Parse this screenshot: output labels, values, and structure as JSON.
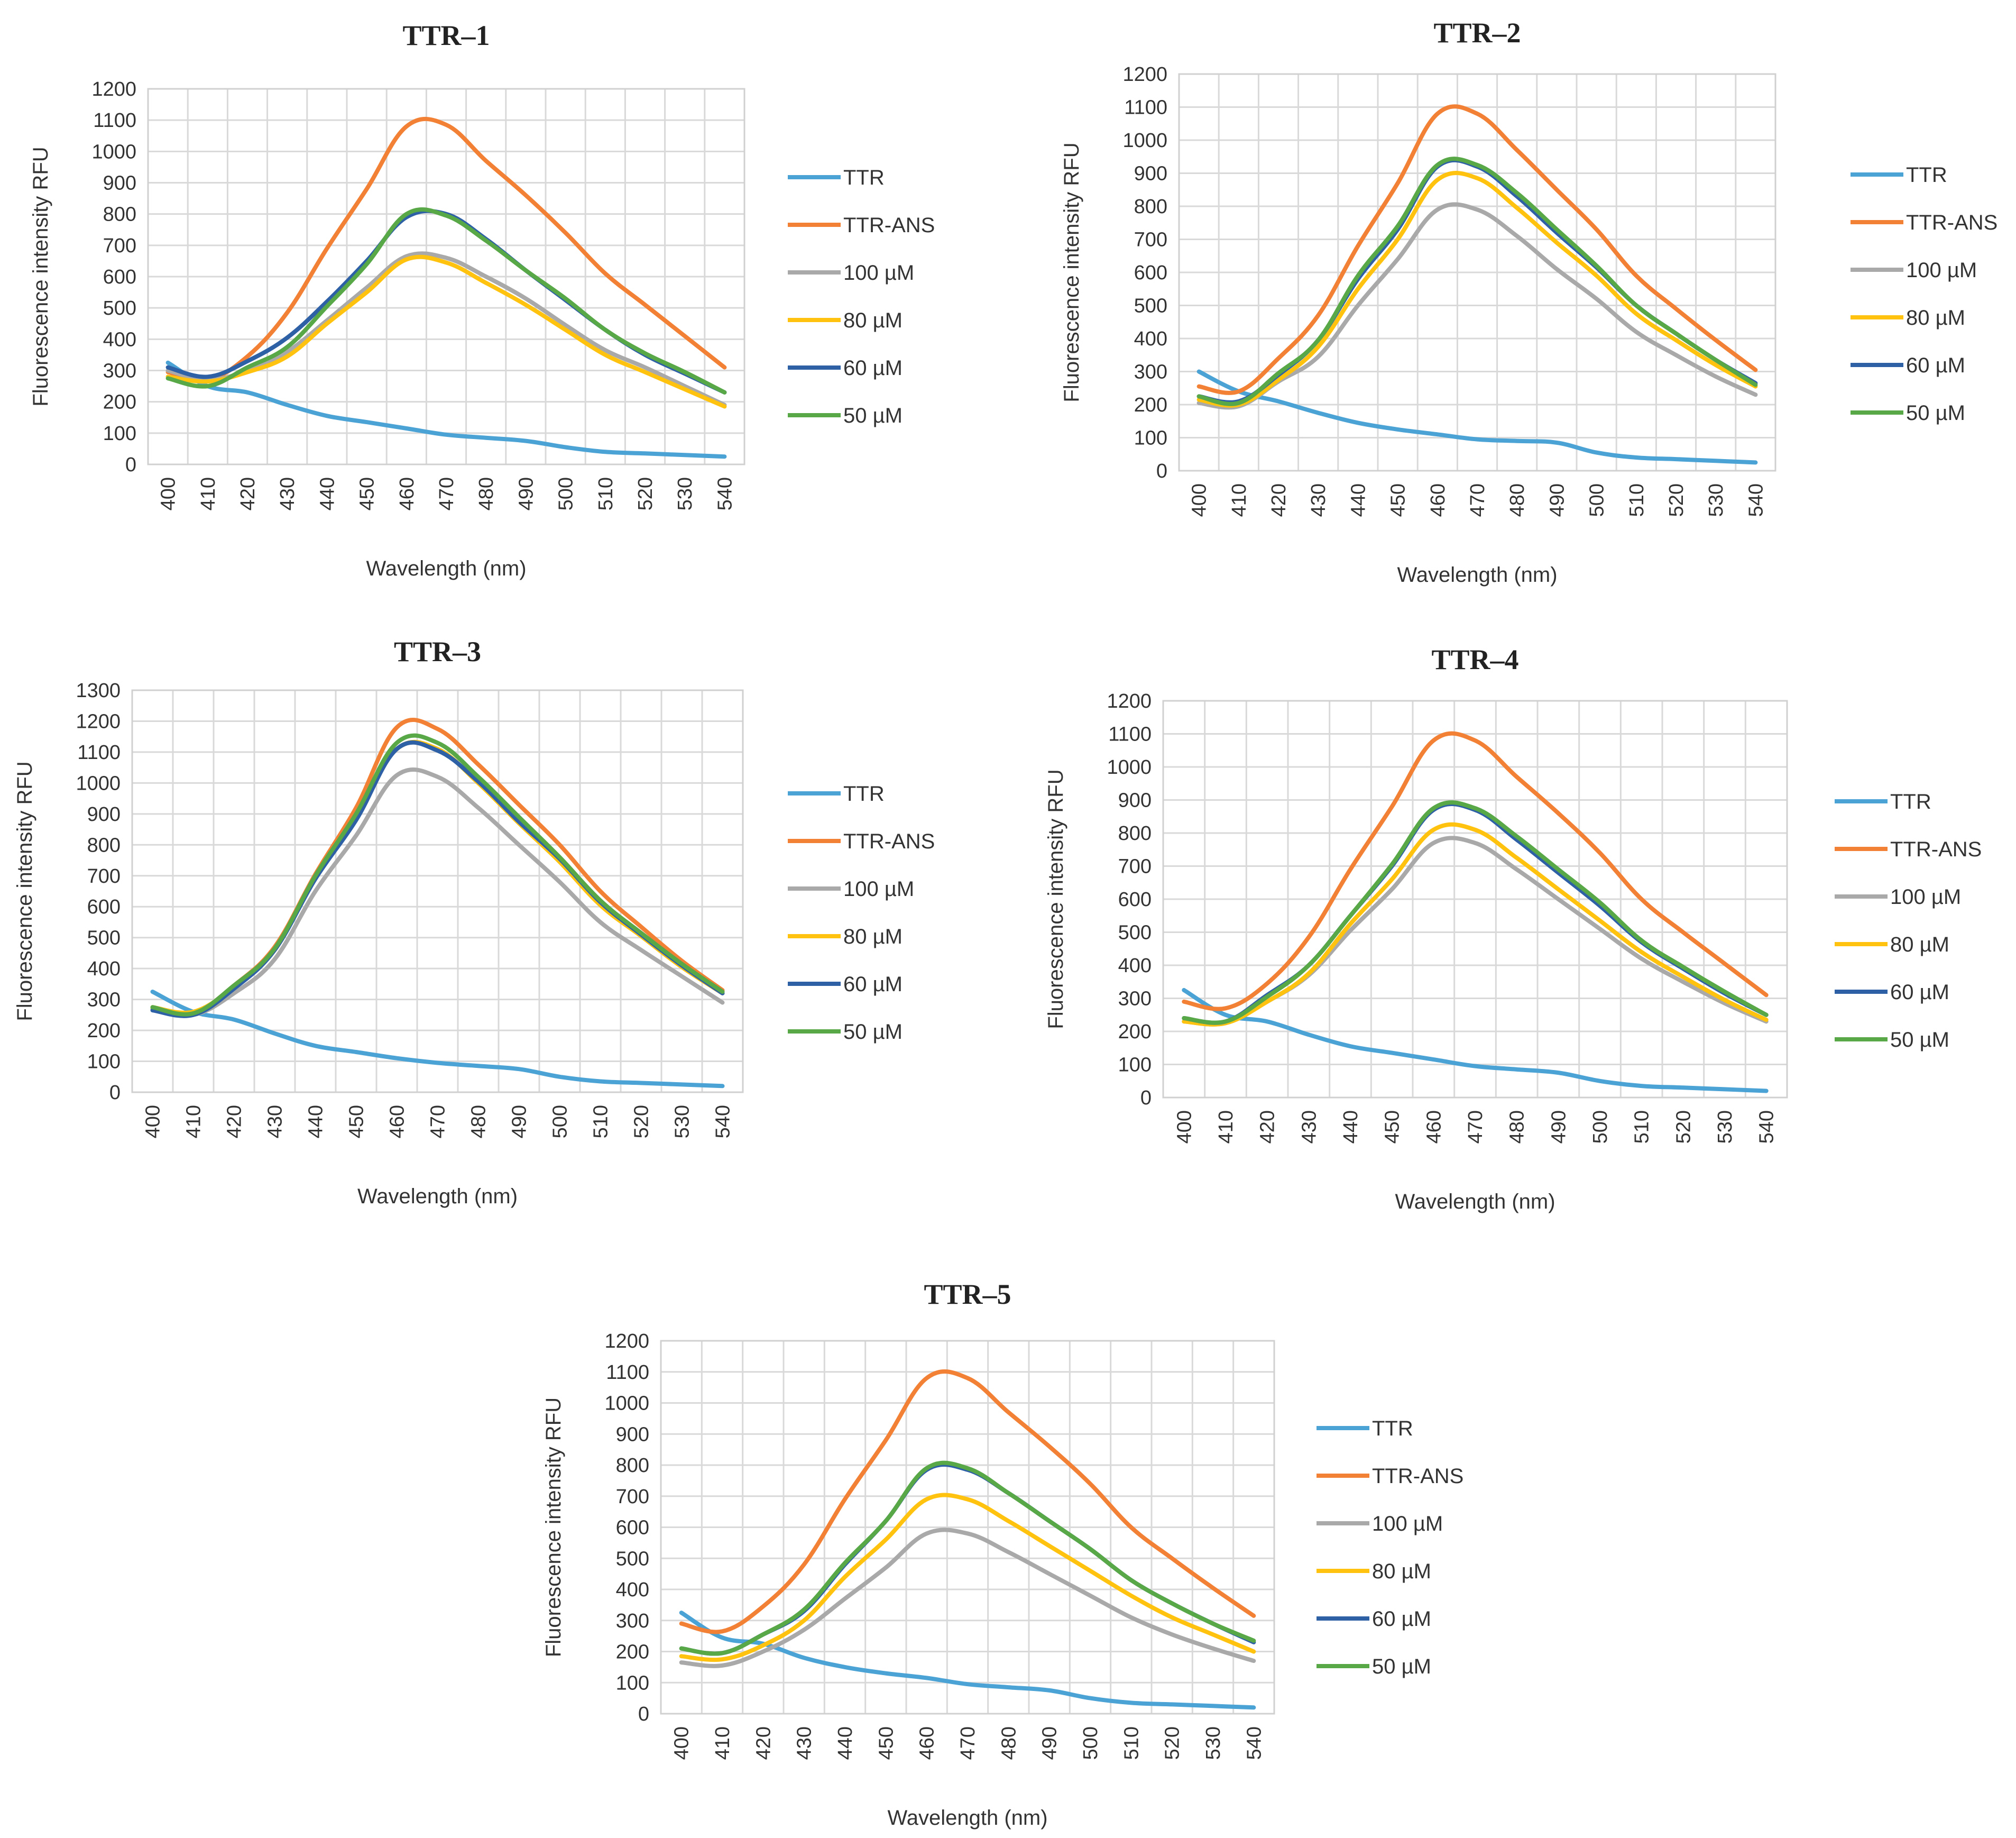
{
  "figure": {
    "colors": {
      "TTR": "#4BA2D4",
      "TTR-ANS": "#F28135",
      "100 µM": "#A9A9A9",
      "80 µM": "#FFC20E",
      "60 µM": "#2E60A6",
      "50 µM": "#58A847"
    }
  },
  "chart_data": [
    {
      "type": "line",
      "title": "TTR–1",
      "xlabel": "Wavelength (nm)",
      "ylabel": "Fluorescence intensity RFU",
      "categories": [
        "400",
        "410",
        "420",
        "430",
        "440",
        "450",
        "460",
        "470",
        "480",
        "490",
        "500",
        "510",
        "520",
        "530",
        "540"
      ],
      "yticks": [
        "0",
        "100",
        "200",
        "300",
        "400",
        "500",
        "600",
        "700",
        "800",
        "900",
        "1000",
        "1100",
        "1200"
      ],
      "ylim": [
        0,
        1200
      ],
      "grid": true,
      "legend": "right",
      "series": [
        {
          "name": "TTR",
          "values": [
            325,
            250,
            230,
            190,
            155,
            135,
            115,
            95,
            85,
            75,
            55,
            40,
            35,
            30,
            25
          ]
        },
        {
          "name": "TTR-ANS",
          "values": [
            295,
            270,
            345,
            485,
            690,
            880,
            1080,
            1085,
            970,
            860,
            740,
            610,
            510,
            410,
            310
          ]
        },
        {
          "name": "100 µM",
          "values": [
            300,
            270,
            300,
            360,
            460,
            565,
            665,
            660,
            600,
            530,
            445,
            365,
            310,
            250,
            190
          ]
        },
        {
          "name": "80 µM",
          "values": [
            280,
            265,
            295,
            345,
            450,
            550,
            655,
            645,
            580,
            510,
            430,
            350,
            295,
            240,
            185
          ]
        },
        {
          "name": "60 µM",
          "values": [
            310,
            280,
            330,
            405,
            520,
            650,
            790,
            800,
            720,
            620,
            525,
            430,
            350,
            290,
            230
          ]
        },
        {
          "name": "50 µM",
          "values": [
            275,
            250,
            310,
            375,
            505,
            640,
            800,
            795,
            715,
            620,
            530,
            430,
            355,
            295,
            230
          ]
        }
      ]
    },
    {
      "type": "line",
      "title": "TTR–2",
      "xlabel": "Wavelength (nm)",
      "ylabel": "Fluorescence intensity RFU",
      "categories": [
        "400",
        "410",
        "420",
        "430",
        "440",
        "450",
        "460",
        "470",
        "480",
        "490",
        "500",
        "510",
        "520",
        "530",
        "540"
      ],
      "yticks": [
        "0",
        "100",
        "200",
        "300",
        "400",
        "500",
        "600",
        "700",
        "800",
        "900",
        "1000",
        "1100",
        "1200"
      ],
      "ylim": [
        0,
        1200
      ],
      "grid": true,
      "legend": "right",
      "series": [
        {
          "name": "TTR",
          "values": [
            300,
            240,
            210,
            175,
            145,
            125,
            110,
            95,
            90,
            85,
            55,
            40,
            35,
            30,
            25
          ]
        },
        {
          "name": "TTR-ANS",
          "values": [
            255,
            240,
            340,
            470,
            680,
            870,
            1080,
            1080,
            970,
            850,
            730,
            590,
            490,
            395,
            305
          ]
        },
        {
          "name": "100 µM",
          "values": [
            205,
            195,
            270,
            345,
            500,
            640,
            790,
            790,
            710,
            610,
            520,
            420,
            350,
            285,
            230
          ]
        },
        {
          "name": "80 µM",
          "values": [
            215,
            200,
            275,
            375,
            550,
            700,
            880,
            885,
            795,
            690,
            590,
            475,
            395,
            320,
            255
          ]
        },
        {
          "name": "60 µM",
          "values": [
            225,
            210,
            290,
            395,
            580,
            730,
            920,
            920,
            830,
            720,
            615,
            500,
            415,
            335,
            265
          ]
        },
        {
          "name": "50 µM",
          "values": [
            225,
            205,
            295,
            395,
            590,
            740,
            925,
            925,
            840,
            730,
            620,
            500,
            415,
            335,
            260
          ]
        }
      ]
    },
    {
      "type": "line",
      "title": "TTR–3",
      "xlabel": "Wavelength (nm)",
      "ylabel": "Fluorescence intensity RFU",
      "categories": [
        "400",
        "410",
        "420",
        "430",
        "440",
        "450",
        "460",
        "470",
        "480",
        "490",
        "500",
        "510",
        "520",
        "530",
        "540"
      ],
      "yticks": [
        "0",
        "100",
        "200",
        "300",
        "400",
        "500",
        "600",
        "700",
        "800",
        "900",
        "1000",
        "1100",
        "1200",
        "1300"
      ],
      "ylim": [
        0,
        1300
      ],
      "grid": true,
      "legend": "right",
      "series": [
        {
          "name": "TTR",
          "values": [
            325,
            260,
            235,
            190,
            150,
            130,
            110,
            95,
            85,
            75,
            50,
            35,
            30,
            25,
            20
          ]
        },
        {
          "name": "TTR-ANS",
          "values": [
            270,
            255,
            345,
            470,
            705,
            920,
            1180,
            1175,
            1060,
            930,
            800,
            650,
            535,
            425,
            330
          ]
        },
        {
          "name": "100 µM",
          "values": [
            270,
            250,
            320,
            430,
            650,
            830,
            1025,
            1020,
            920,
            800,
            680,
            550,
            460,
            375,
            290
          ]
        },
        {
          "name": "80 µM",
          "values": [
            275,
            260,
            340,
            460,
            695,
            890,
            1110,
            1110,
            1000,
            870,
            745,
            605,
            505,
            405,
            320
          ]
        },
        {
          "name": "60 µM",
          "values": [
            265,
            250,
            335,
            460,
            690,
            880,
            1110,
            1105,
            1005,
            875,
            755,
            615,
            510,
            410,
            320
          ]
        },
        {
          "name": "50 µM",
          "values": [
            275,
            255,
            345,
            465,
            700,
            900,
            1130,
            1130,
            1020,
            890,
            760,
            620,
            515,
            415,
            325
          ]
        }
      ]
    },
    {
      "type": "line",
      "title": "TTR–4",
      "xlabel": "Wavelength (nm)",
      "ylabel": "Fluorescence intensity RFU",
      "categories": [
        "400",
        "410",
        "420",
        "430",
        "440",
        "450",
        "460",
        "470",
        "480",
        "490",
        "500",
        "510",
        "520",
        "530",
        "540"
      ],
      "yticks": [
        "0",
        "100",
        "200",
        "300",
        "400",
        "500",
        "600",
        "700",
        "800",
        "900",
        "1000",
        "1100",
        "1200"
      ],
      "ylim": [
        0,
        1200
      ],
      "grid": true,
      "legend": "right",
      "series": [
        {
          "name": "TTR",
          "values": [
            325,
            250,
            230,
            190,
            155,
            135,
            115,
            95,
            85,
            75,
            50,
            35,
            30,
            25,
            20
          ]
        },
        {
          "name": "TTR-ANS",
          "values": [
            290,
            270,
            345,
            485,
            690,
            880,
            1080,
            1080,
            970,
            860,
            740,
            600,
            500,
            405,
            310
          ]
        },
        {
          "name": "100 µM",
          "values": [
            230,
            225,
            290,
            370,
            505,
            630,
            770,
            770,
            690,
            600,
            510,
            420,
            350,
            285,
            230
          ]
        },
        {
          "name": "80 µM",
          "values": [
            230,
            225,
            290,
            375,
            525,
            660,
            810,
            810,
            725,
            630,
            535,
            440,
            365,
            295,
            235
          ]
        },
        {
          "name": "60 µM",
          "values": [
            240,
            230,
            310,
            400,
            550,
            700,
            870,
            870,
            780,
            680,
            580,
            470,
            390,
            315,
            250
          ]
        },
        {
          "name": "50 µM",
          "values": [
            240,
            230,
            305,
            400,
            550,
            705,
            875,
            875,
            790,
            690,
            590,
            475,
            395,
            320,
            250
          ]
        }
      ]
    },
    {
      "type": "line",
      "title": "TTR–5",
      "xlabel": "Wavelength (nm)",
      "ylabel": "Fluorescence intensity RFU",
      "categories": [
        "400",
        "410",
        "420",
        "430",
        "440",
        "450",
        "460",
        "470",
        "480",
        "490",
        "500",
        "510",
        "520",
        "530",
        "540"
      ],
      "yticks": [
        "0",
        "100",
        "200",
        "300",
        "400",
        "500",
        "600",
        "700",
        "800",
        "900",
        "1000",
        "1100",
        "1200"
      ],
      "ylim": [
        0,
        1200
      ],
      "grid": true,
      "legend": "right",
      "series": [
        {
          "name": "TTR",
          "values": [
            325,
            245,
            225,
            180,
            150,
            130,
            115,
            95,
            85,
            75,
            50,
            35,
            30,
            25,
            20
          ]
        },
        {
          "name": "TTR-ANS",
          "values": [
            290,
            265,
            345,
            480,
            690,
            880,
            1080,
            1080,
            970,
            860,
            740,
            600,
            500,
            405,
            315
          ]
        },
        {
          "name": "100 µM",
          "values": [
            165,
            155,
            200,
            270,
            370,
            470,
            580,
            580,
            520,
            450,
            380,
            310,
            255,
            210,
            170
          ]
        },
        {
          "name": "80 µM",
          "values": [
            185,
            175,
            220,
            300,
            440,
            560,
            690,
            690,
            620,
            540,
            460,
            380,
            310,
            255,
            200
          ]
        },
        {
          "name": "60 µM",
          "values": [
            210,
            195,
            255,
            330,
            480,
            620,
            785,
            785,
            710,
            620,
            530,
            430,
            355,
            290,
            230
          ]
        },
        {
          "name": "50 µM",
          "values": [
            210,
            195,
            255,
            335,
            485,
            620,
            790,
            790,
            710,
            620,
            530,
            430,
            355,
            290,
            235
          ]
        }
      ]
    }
  ]
}
